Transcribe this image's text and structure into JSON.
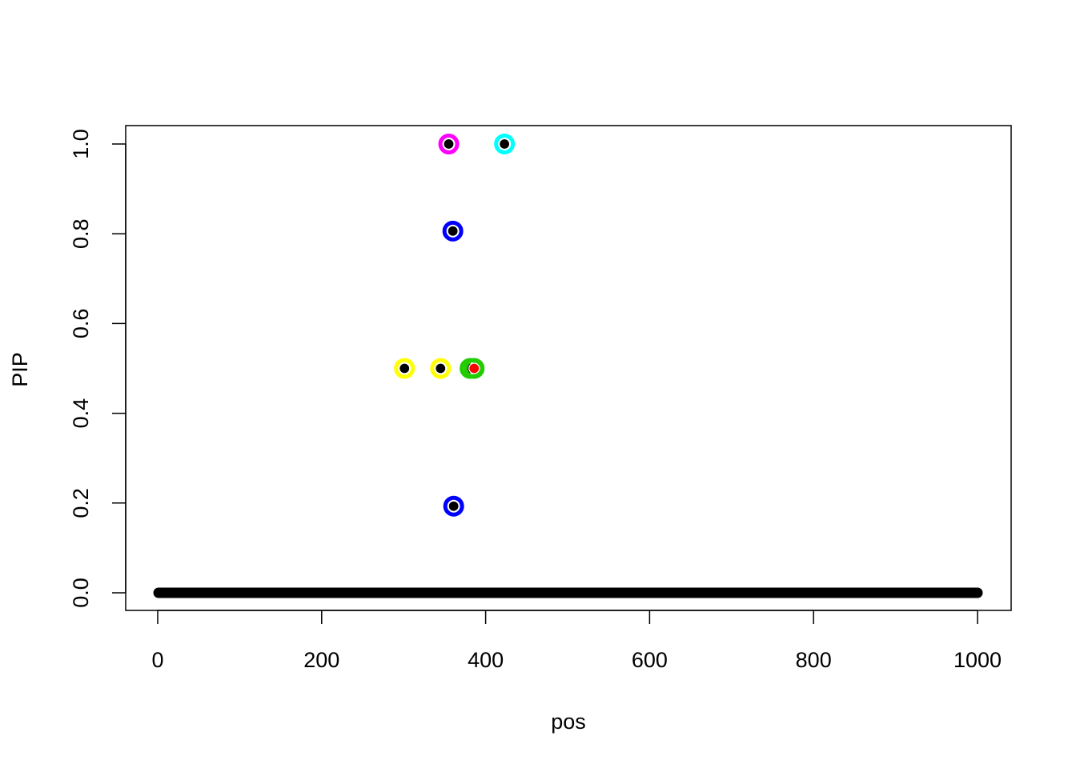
{
  "chart_data": {
    "type": "scatter",
    "title": "",
    "xlabel": "pos",
    "ylabel": "PIP",
    "xlim": [
      -40,
      1040
    ],
    "ylim": [
      -0.04,
      1.04
    ],
    "x_ticks": [
      "0",
      "200",
      "400",
      "600",
      "800",
      "1000"
    ],
    "y_ticks": [
      "0.0",
      "0.2",
      "0.4",
      "0.6",
      "0.8",
      "1.0"
    ],
    "grid": false,
    "legend": "none",
    "background_points": {
      "x_from": 1,
      "x_to": 1000,
      "y": 0,
      "color": "#000000"
    },
    "points": [
      {
        "x": 355,
        "y": 1.0,
        "ring": "#ff00ff",
        "fill": "#000000"
      },
      {
        "x": 423,
        "y": 1.0,
        "ring": "#00ffff",
        "fill": "#000000"
      },
      {
        "x": 360,
        "y": 0.806,
        "ring": "#0000ff",
        "fill": "#000000"
      },
      {
        "x": 361,
        "y": 0.193,
        "ring": "#0000ff",
        "fill": "#000000"
      },
      {
        "x": 301,
        "y": 0.5,
        "ring": "#ffff00",
        "fill": "#000000"
      },
      {
        "x": 345,
        "y": 0.5,
        "ring": "#ffff00",
        "fill": "#000000"
      },
      {
        "x": 381,
        "y": 0.5,
        "ring": "#22cc00",
        "fill": "#000000"
      },
      {
        "x": 386,
        "y": 0.5,
        "ring": "#22cc00",
        "fill": "#ff0000"
      }
    ]
  }
}
